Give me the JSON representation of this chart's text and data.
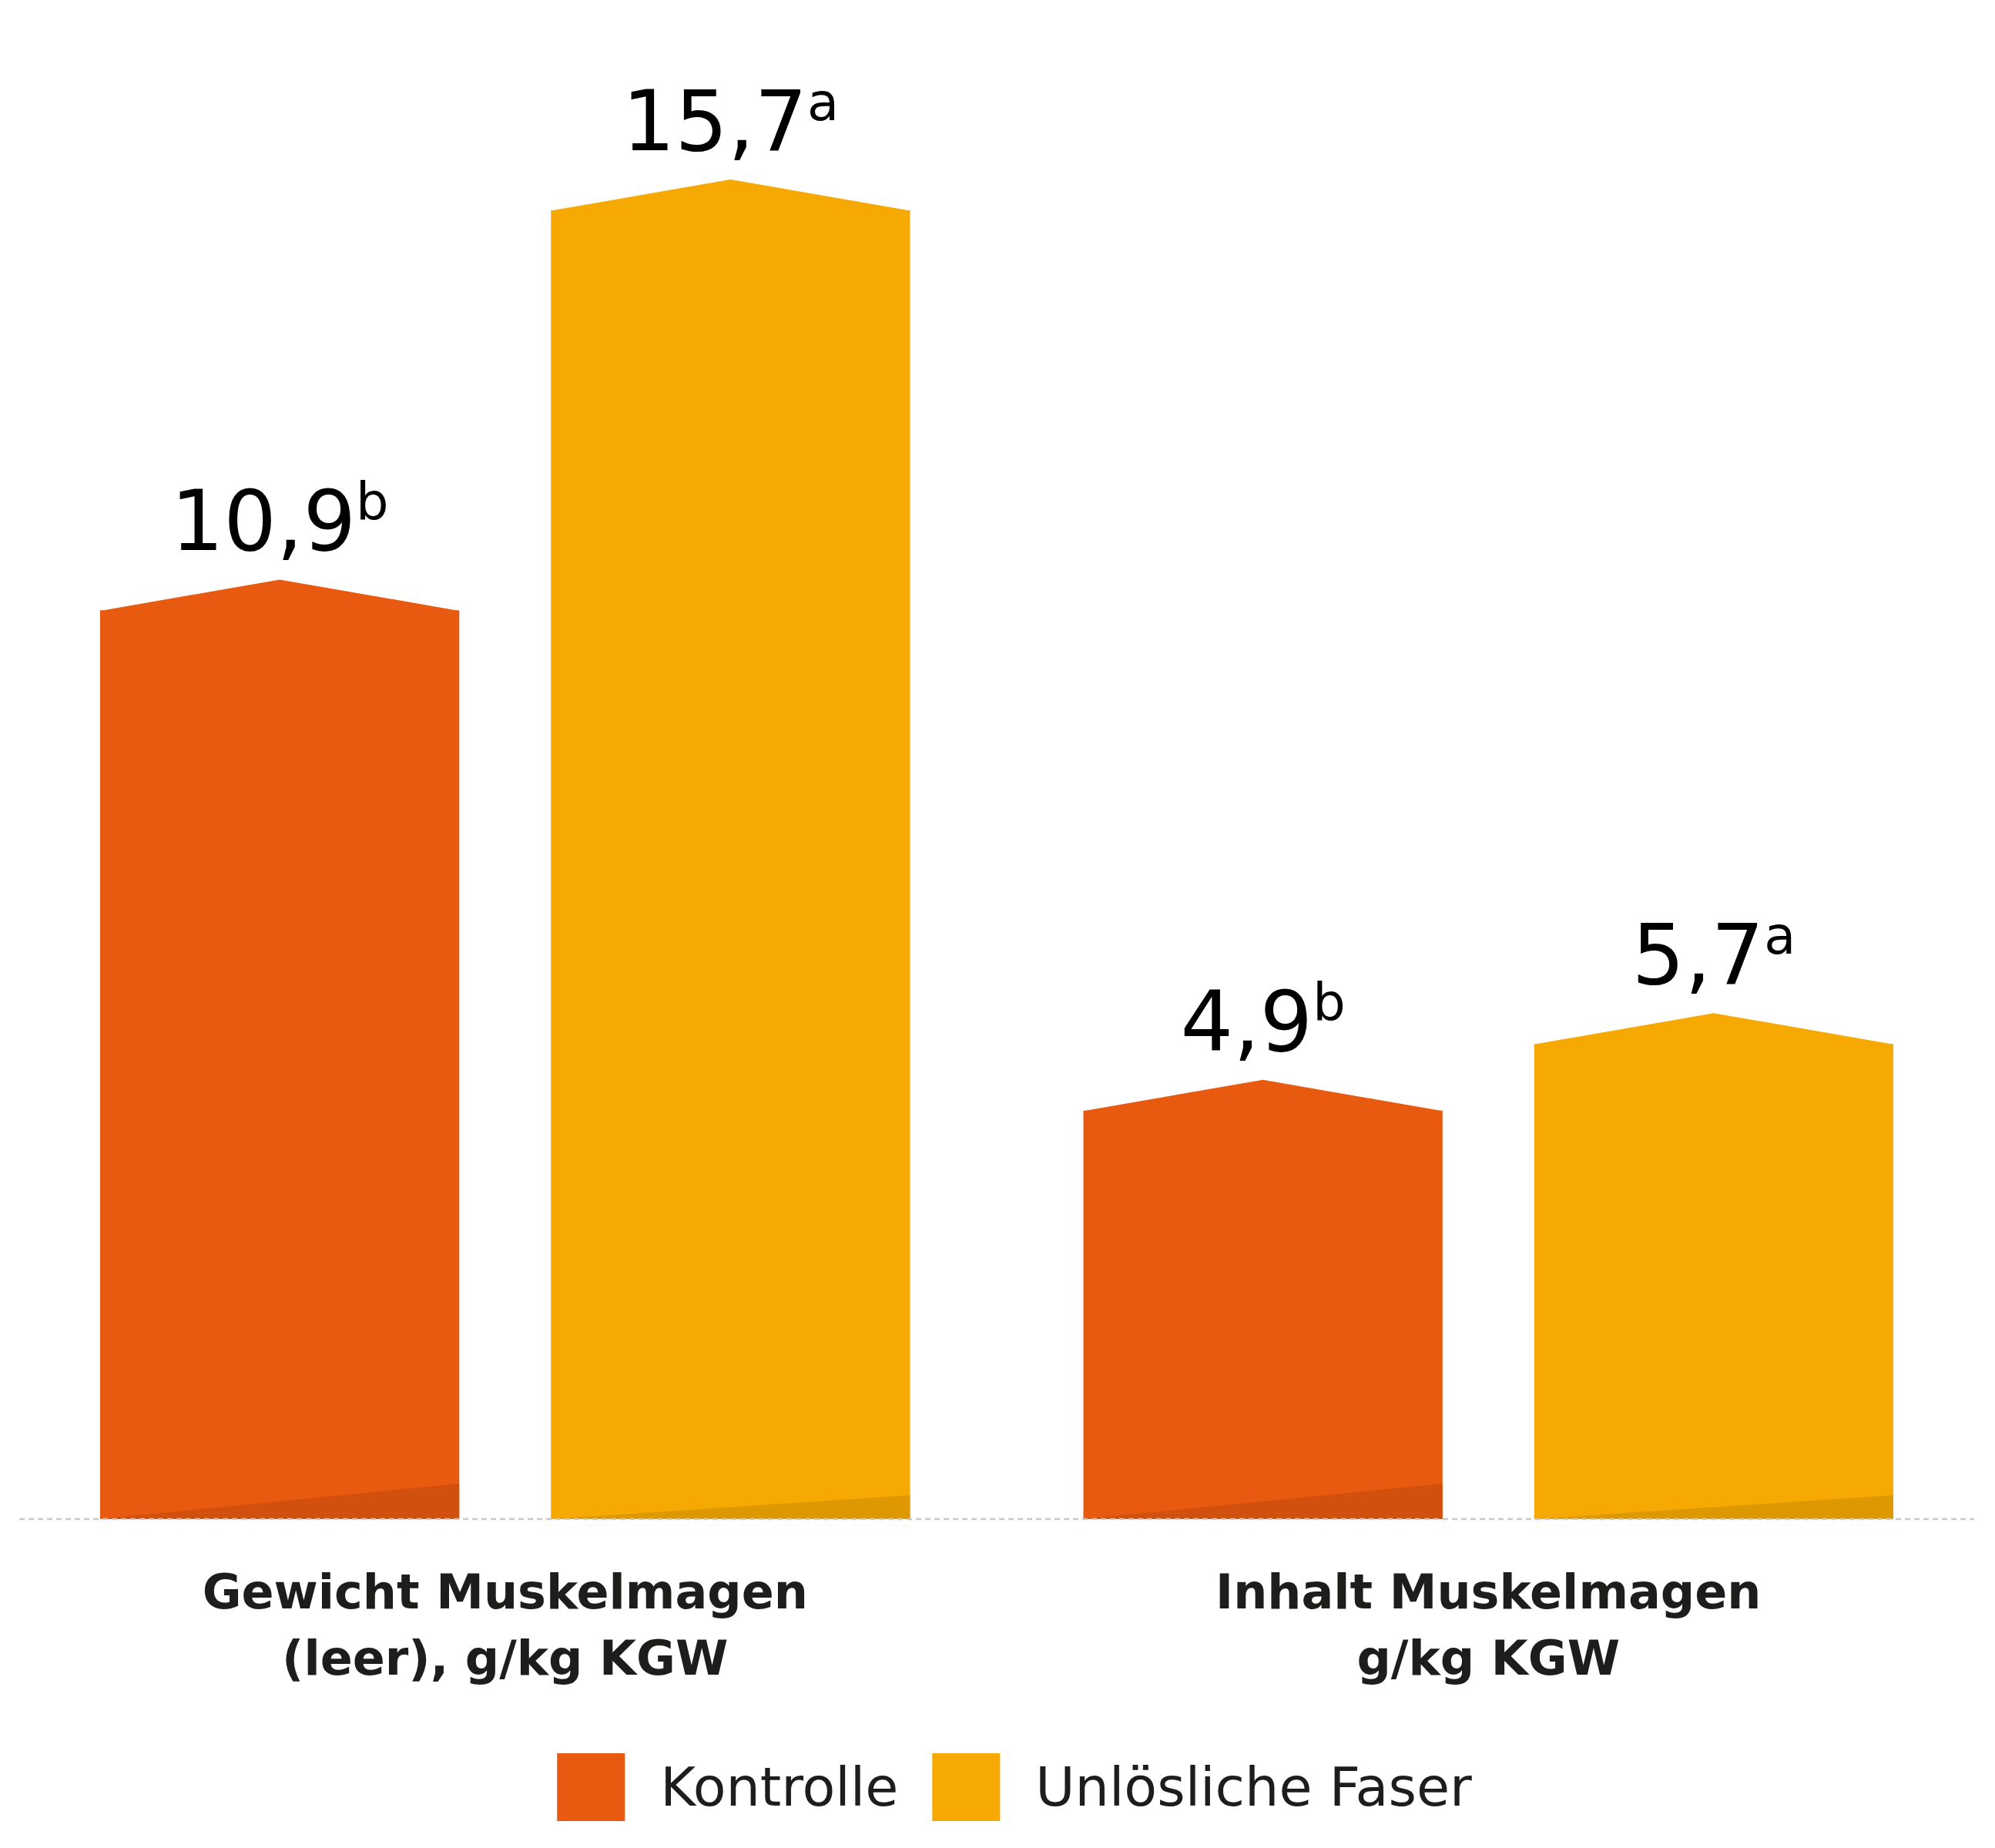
{
  "chart_data": {
    "type": "bar",
    "categories": [
      "Gewicht Muskelmagen\n(leer), g/kg KGW",
      "Inhalt Muskelmagen\ng/kg KGW"
    ],
    "series": [
      {
        "name": "Kontrolle",
        "color": "#e85a0f",
        "values": [
          10.9,
          4.9
        ],
        "value_labels": [
          "10,9$^{b}$",
          "4,9$^{b}$"
        ]
      },
      {
        "name": "Unlösliche Faser",
        "color": "#f5a902",
        "values": [
          15.7,
          5.7
        ],
        "value_labels": [
          "15,7$^{a}$",
          "5,7$^{a}$"
        ]
      }
    ],
    "legend": "bottom"
  }
}
